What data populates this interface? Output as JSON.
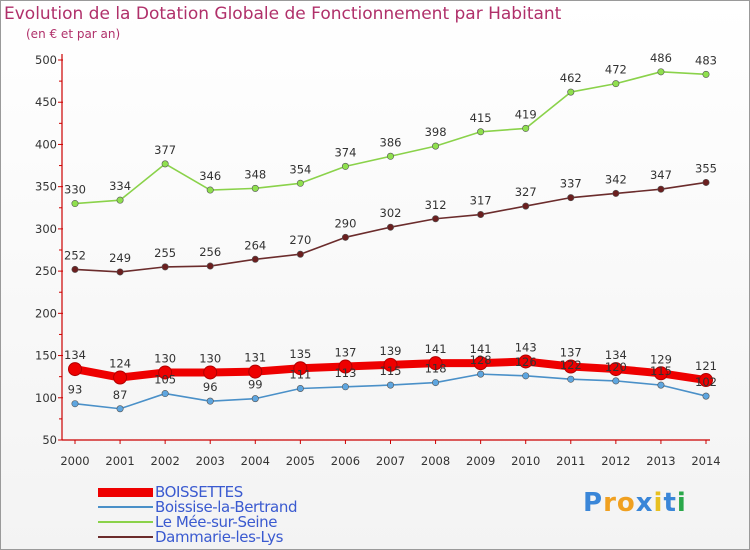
{
  "title": "Evolution de la Dotation Globale de Fonctionnement par Habitant",
  "subtitle": "(en € et par an)",
  "brand": "Proxiti",
  "chart_data": {
    "type": "line",
    "title": "Evolution de la Dotation Globale de Fonctionnement par Habitant",
    "subtitle": "(en € et par an)",
    "xlabel": "",
    "ylabel": "",
    "ylim": [
      50,
      500
    ],
    "yticks": [
      50,
      100,
      150,
      200,
      250,
      300,
      350,
      400,
      450,
      500
    ],
    "grid": false,
    "legend_position": "bottom-left",
    "categories": [
      "2000",
      "2001",
      "2002",
      "2003",
      "2004",
      "2005",
      "2006",
      "2007",
      "2008",
      "2009",
      "2010",
      "2011",
      "2012",
      "2013",
      "2014"
    ],
    "series": [
      {
        "name": "Boissise-la-Bertrand",
        "color": "#4a90c8",
        "fill": "#5ea6e0",
        "values": [
          93,
          87,
          105,
          96,
          99,
          111,
          113,
          115,
          118,
          128,
          126,
          122,
          120,
          115,
          102
        ]
      },
      {
        "name": "Le Mée-sur-Seine",
        "color": "#8ad24a",
        "fill": "#8fe04e",
        "values": [
          330,
          334,
          377,
          346,
          348,
          354,
          374,
          386,
          398,
          415,
          419,
          462,
          472,
          486,
          483
        ]
      },
      {
        "name": "Dammarie-les-Lys",
        "color": "#6b2c2c",
        "fill": "#6b1f1f",
        "values": [
          252,
          249,
          255,
          256,
          264,
          270,
          290,
          302,
          312,
          317,
          327,
          337,
          342,
          347,
          355
        ]
      },
      {
        "name": "BOISSETTES",
        "color": "#ee0000",
        "fill": "#ee0000",
        "values": [
          134,
          124,
          130,
          130,
          131,
          135,
          137,
          139,
          141,
          141,
          143,
          137,
          134,
          129,
          121
        ]
      }
    ]
  },
  "legend": [
    {
      "name": "BOISSETTES",
      "color": "#ee0000",
      "text_color": "#3a5ad0"
    },
    {
      "name": "Boissise-la-Bertrand",
      "color": "#4a90c8",
      "text_color": "#3a5ad0"
    },
    {
      "name": "Le Mée-sur-Seine",
      "color": "#8ad24a",
      "text_color": "#3a5ad0"
    },
    {
      "name": "Dammarie-les-Lys",
      "color": "#6b2c2c",
      "text_color": "#3a5ad0"
    }
  ],
  "brand_colors": [
    "#3a86d8",
    "#f0a020",
    "#f0a020",
    "#3a86d8",
    "#e8c020",
    "#3a86d8",
    "#2aa84a"
  ]
}
